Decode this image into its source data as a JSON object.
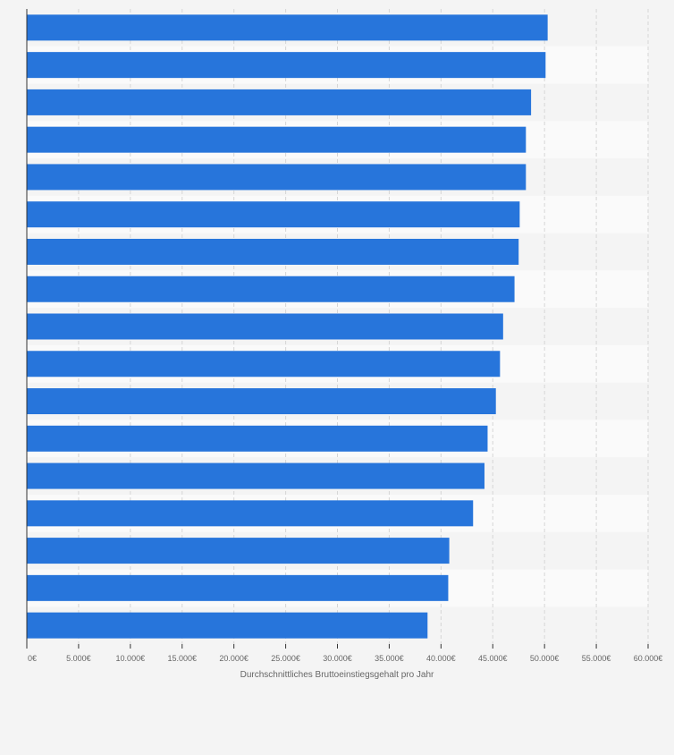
{
  "chart_data": {
    "type": "bar",
    "orientation": "horizontal",
    "xlabel": "Durchschnittliches Bruttoeinstiegsgehalt pro Jahr",
    "xlim": [
      0,
      60000
    ],
    "x_ticks": [
      {
        "value": 0,
        "label": "0€"
      },
      {
        "value": 5000,
        "label": "5.000€"
      },
      {
        "value": 10000,
        "label": "10.000€"
      },
      {
        "value": 15000,
        "label": "15.000€"
      },
      {
        "value": 20000,
        "label": "20.000€"
      },
      {
        "value": 25000,
        "label": "25.000€"
      },
      {
        "value": 30000,
        "label": "30.000€"
      },
      {
        "value": 35000,
        "label": "35.000€"
      },
      {
        "value": 40000,
        "label": "40.000€"
      },
      {
        "value": 45000,
        "label": "45.000€"
      },
      {
        "value": 50000,
        "label": "50.000€"
      },
      {
        "value": 55000,
        "label": "55.000€"
      },
      {
        "value": 60000,
        "label": "60.000€"
      }
    ],
    "values": [
      50300,
      50100,
      48700,
      48200,
      48200,
      47600,
      47500,
      47100,
      46000,
      45700,
      45300,
      44500,
      44200,
      43100,
      40800,
      40700,
      38700
    ],
    "grid": true,
    "colors": {
      "bar": "#2775db",
      "background": "#f4f4f4",
      "stripe": "#fafafa",
      "grid": "#d6d6d6",
      "axis": "#333333",
      "tick_text": "#666666"
    }
  }
}
